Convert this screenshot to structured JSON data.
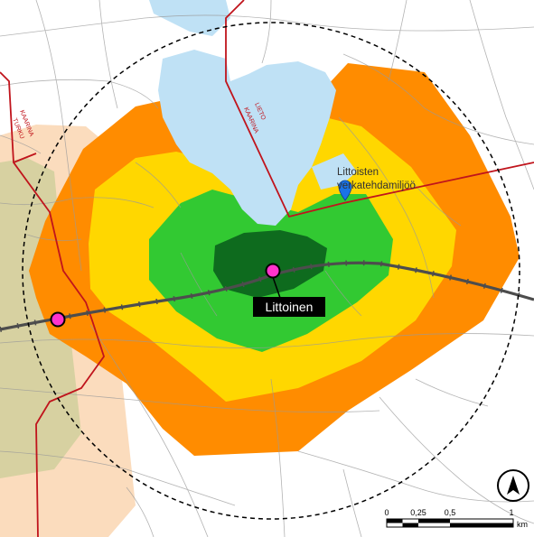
{
  "map": {
    "station_label": "Littoinen",
    "poi_label_line1": "Littoisten",
    "poi_label_line2": "verkatehdamiljöö",
    "boundaries": {
      "kaarina_nw": "KAARINA",
      "turku": "TURKU",
      "lieto": "LIETO",
      "kaarina_ne": "KAARINA"
    },
    "north_arrow": "north-arrow",
    "scalebar": {
      "ticks": [
        "0",
        "0,25",
        "0,5",
        "1"
      ],
      "unit": "km"
    },
    "colors": {
      "water": "#bfe1f5",
      "zone_outer": "#ff8c00",
      "zone_mid": "#ffd700",
      "zone_inner": "#32c932",
      "zone_core": "#0e6b1e",
      "turku_area": "#f9c99a",
      "railway": "#4d4d4d",
      "station": "#ff33cc",
      "boundary": "#c0141c",
      "poi_marker": "#1a73e8",
      "label_bg": "#000000"
    }
  }
}
